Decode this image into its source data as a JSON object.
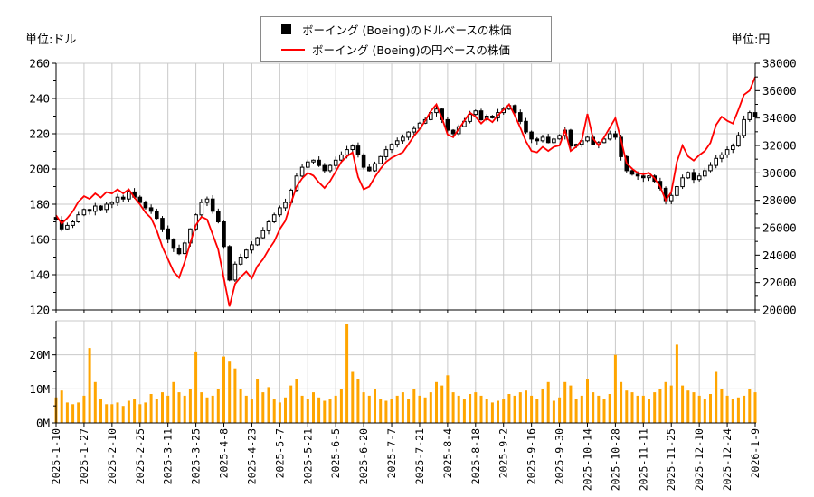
{
  "units": {
    "left": "単位:ドル",
    "right": "単位:円"
  },
  "legend": {
    "usd_label": "ボーイング (Boeing)のドルベースの株価",
    "jpy_label": "ボーイング (Boeing)の円ベースの株価",
    "usd_marker_color": "#000000",
    "jpy_marker_color": "#ff0000"
  },
  "chart_data": [
    {
      "type": "candlestick+line",
      "title": "",
      "grid": true,
      "legend_position": "top-center",
      "days_per_point": 2,
      "total_days": 250,
      "x_tick_labels": [
        "2025-1-10",
        "2025-1-27",
        "2025-2-10",
        "2025-2-25",
        "2025-3-11",
        "2025-3-25",
        "2025-4-8",
        "2025-4-23",
        "2025-5-7",
        "2025-5-21",
        "2025-6-5",
        "2025-6-20",
        "2025-7-7",
        "2025-7-21",
        "2025-8-4",
        "2025-8-18",
        "2025-9-2",
        "2025-9-16",
        "2025-9-30",
        "2025-10-14",
        "2025-10-28",
        "2025-11-11",
        "2025-11-25",
        "2025-12-10",
        "2025-12-24",
        "2026-1-9"
      ],
      "left_axis": {
        "label": "単位:ドル",
        "range": [
          120,
          260
        ],
        "ticks": [
          120,
          140,
          160,
          180,
          200,
          220,
          240,
          260
        ],
        "minor_step": 10
      },
      "right_axis": {
        "label": "単位:円",
        "range": [
          20000,
          38000
        ],
        "ticks": [
          20000,
          22000,
          24000,
          26000,
          28000,
          30000,
          32000,
          34000,
          36000,
          38000
        ],
        "minor_step": 1000
      },
      "series": [
        {
          "name": "ボーイング (Boeing)のドルベースの株価",
          "type": "candlestick",
          "axis": "left",
          "up_fill": "#ffffff",
          "down_fill": "#000000",
          "close": [
            171,
            166,
            168,
            170,
            174,
            177,
            176,
            179,
            177,
            180,
            181,
            184,
            183,
            187,
            184,
            181,
            178,
            176,
            172,
            166,
            160,
            155,
            152,
            158,
            166,
            174,
            181,
            183,
            176,
            170,
            156,
            137,
            146,
            150,
            154,
            157,
            161,
            165,
            170,
            174,
            178,
            181,
            188,
            196,
            201,
            204,
            205,
            202,
            199,
            202,
            205,
            208,
            211,
            213,
            208,
            201,
            199,
            203,
            207,
            211,
            214,
            216,
            218,
            221,
            223,
            226,
            228,
            232,
            234,
            228,
            222,
            220,
            224,
            227,
            231,
            233,
            228,
            230,
            229,
            232,
            234,
            236,
            232,
            227,
            221,
            217,
            216,
            218,
            215,
            217,
            219,
            222,
            213,
            214,
            216,
            218,
            214,
            215,
            217,
            220,
            218,
            207,
            199,
            197,
            196,
            195,
            196,
            193,
            189,
            182,
            185,
            190,
            195,
            198,
            194,
            196,
            199,
            202,
            206,
            208,
            211,
            213,
            219,
            228,
            232,
            230
          ]
        },
        {
          "name": "ボーイング (Boeing)の円ベースの株価",
          "type": "line",
          "axis": "right",
          "color": "#ff0000",
          "close": [
            26900,
            26300,
            26700,
            27200,
            27900,
            28300,
            28100,
            28500,
            28200,
            28600,
            28500,
            28800,
            28500,
            28800,
            28200,
            27700,
            27100,
            26700,
            25800,
            24600,
            23700,
            22800,
            22350,
            23500,
            24900,
            26200,
            26800,
            26600,
            25500,
            24400,
            22300,
            20250,
            21900,
            22400,
            22800,
            22300,
            23200,
            23700,
            24400,
            25000,
            25900,
            26500,
            27800,
            29000,
            29600,
            30000,
            29800,
            29300,
            28900,
            29400,
            30100,
            30800,
            31200,
            31500,
            29700,
            28800,
            29000,
            29700,
            30300,
            30800,
            31100,
            31300,
            31500,
            32100,
            32700,
            33200,
            33800,
            34500,
            35000,
            34000,
            32800,
            32600,
            33200,
            33800,
            34400,
            34100,
            33600,
            34000,
            33700,
            34200,
            34600,
            35000,
            34200,
            33300,
            32300,
            31600,
            31500,
            31900,
            31600,
            31900,
            32000,
            33100,
            31600,
            31900,
            32400,
            34300,
            32500,
            32000,
            32600,
            33300,
            34000,
            32400,
            30700,
            30300,
            30000,
            29900,
            30000,
            29600,
            29000,
            28000,
            28600,
            30800,
            32000,
            31200,
            30900,
            31300,
            31600,
            32200,
            33500,
            34100,
            33800,
            33600,
            34600,
            35700,
            36000,
            37000
          ]
        }
      ]
    },
    {
      "type": "bar",
      "name": "volume",
      "color": "#ffa500",
      "y_tick_labels": [
        "0M",
        "10M",
        "20M"
      ],
      "ylim": [
        0,
        30
      ],
      "unit": "millions",
      "values_millions": [
        7.5,
        9.5,
        6,
        5.5,
        6,
        8,
        22,
        12,
        7,
        5.5,
        5.5,
        6,
        5,
        6.5,
        7,
        5.5,
        6,
        8.5,
        7,
        9,
        8,
        12,
        9,
        8,
        10,
        21,
        9,
        7.5,
        8,
        10,
        19.5,
        18,
        16,
        10,
        8,
        7,
        13,
        9,
        10.5,
        7,
        6,
        7.5,
        11,
        13,
        8,
        7,
        9,
        7.5,
        6.5,
        7,
        8,
        10,
        29,
        15,
        13,
        9,
        8,
        10,
        7,
        6.5,
        7,
        8,
        9,
        7,
        10,
        8,
        7.5,
        9,
        12,
        11,
        14,
        9,
        8,
        7,
        8.5,
        9,
        8,
        7,
        6,
        6.5,
        7,
        8.5,
        8,
        9,
        9.5,
        8,
        7,
        10,
        12,
        6.5,
        7.5,
        12,
        11,
        7,
        8,
        13,
        9,
        8,
        7,
        8.5,
        20,
        12,
        9.5,
        9,
        8,
        8,
        7,
        9,
        10,
        12,
        11,
        23,
        11,
        9.5,
        9,
        8,
        7,
        8.5,
        15,
        10,
        8,
        7,
        7.5,
        8,
        10,
        9
      ]
    }
  ],
  "colors": {
    "grid": "#c9c9c9",
    "axis": "#000000",
    "background": "#ffffff"
  }
}
